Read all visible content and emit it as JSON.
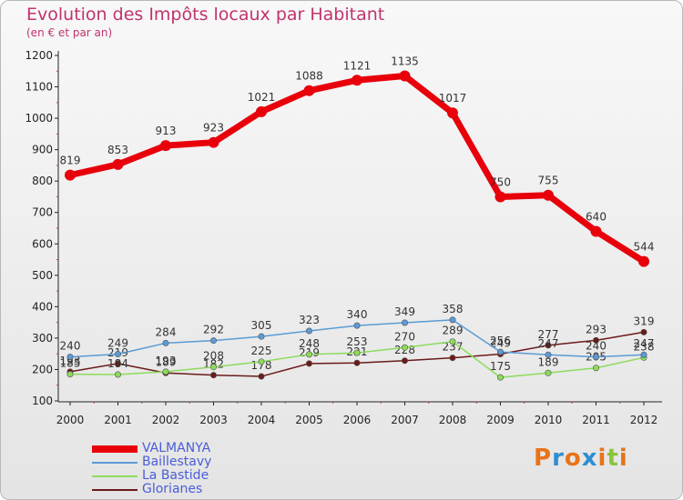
{
  "title": "Evolution des Impôts locaux par Habitant",
  "subtitle": "(en € et par an)",
  "brand": {
    "text": "Proxiti",
    "letter_colors": [
      "#e8731a",
      "#2d8fd1",
      "#e8731a",
      "#2d8fd1",
      "#e8731a",
      "#8ac43f",
      "#e8731a"
    ]
  },
  "chart_data": {
    "type": "line",
    "x": [
      2000,
      2001,
      2002,
      2003,
      2004,
      2005,
      2006,
      2007,
      2008,
      2009,
      2010,
      2011,
      2012
    ],
    "ylim": [
      100,
      1200
    ],
    "yticks": [
      100,
      200,
      300,
      400,
      500,
      600,
      700,
      800,
      900,
      1000,
      1100,
      1200
    ],
    "grid": false,
    "legend": "bottom-left",
    "series": [
      {
        "name": "VALMANYA",
        "color": "#e8000b",
        "values": [
          819,
          853,
          913,
          923,
          1021,
          1088,
          1121,
          1135,
          1017,
          750,
          755,
          640,
          544
        ]
      },
      {
        "name": "Baillestavy",
        "color": "#5b9bd5",
        "values": [
          240,
          249,
          284,
          292,
          305,
          323,
          340,
          349,
          358,
          256,
          247,
          240,
          247
        ]
      },
      {
        "name": "La Bastide",
        "color": "#8ddb5a",
        "values": [
          185,
          184,
          193,
          208,
          225,
          248,
          253,
          270,
          289,
          175,
          189,
          205,
          238
        ]
      },
      {
        "name": "Glorianes",
        "color": "#6b1a1a",
        "values": [
          193,
          219,
          189,
          182,
          178,
          219,
          221,
          228,
          237,
          249,
          277,
          293,
          319
        ]
      }
    ]
  }
}
